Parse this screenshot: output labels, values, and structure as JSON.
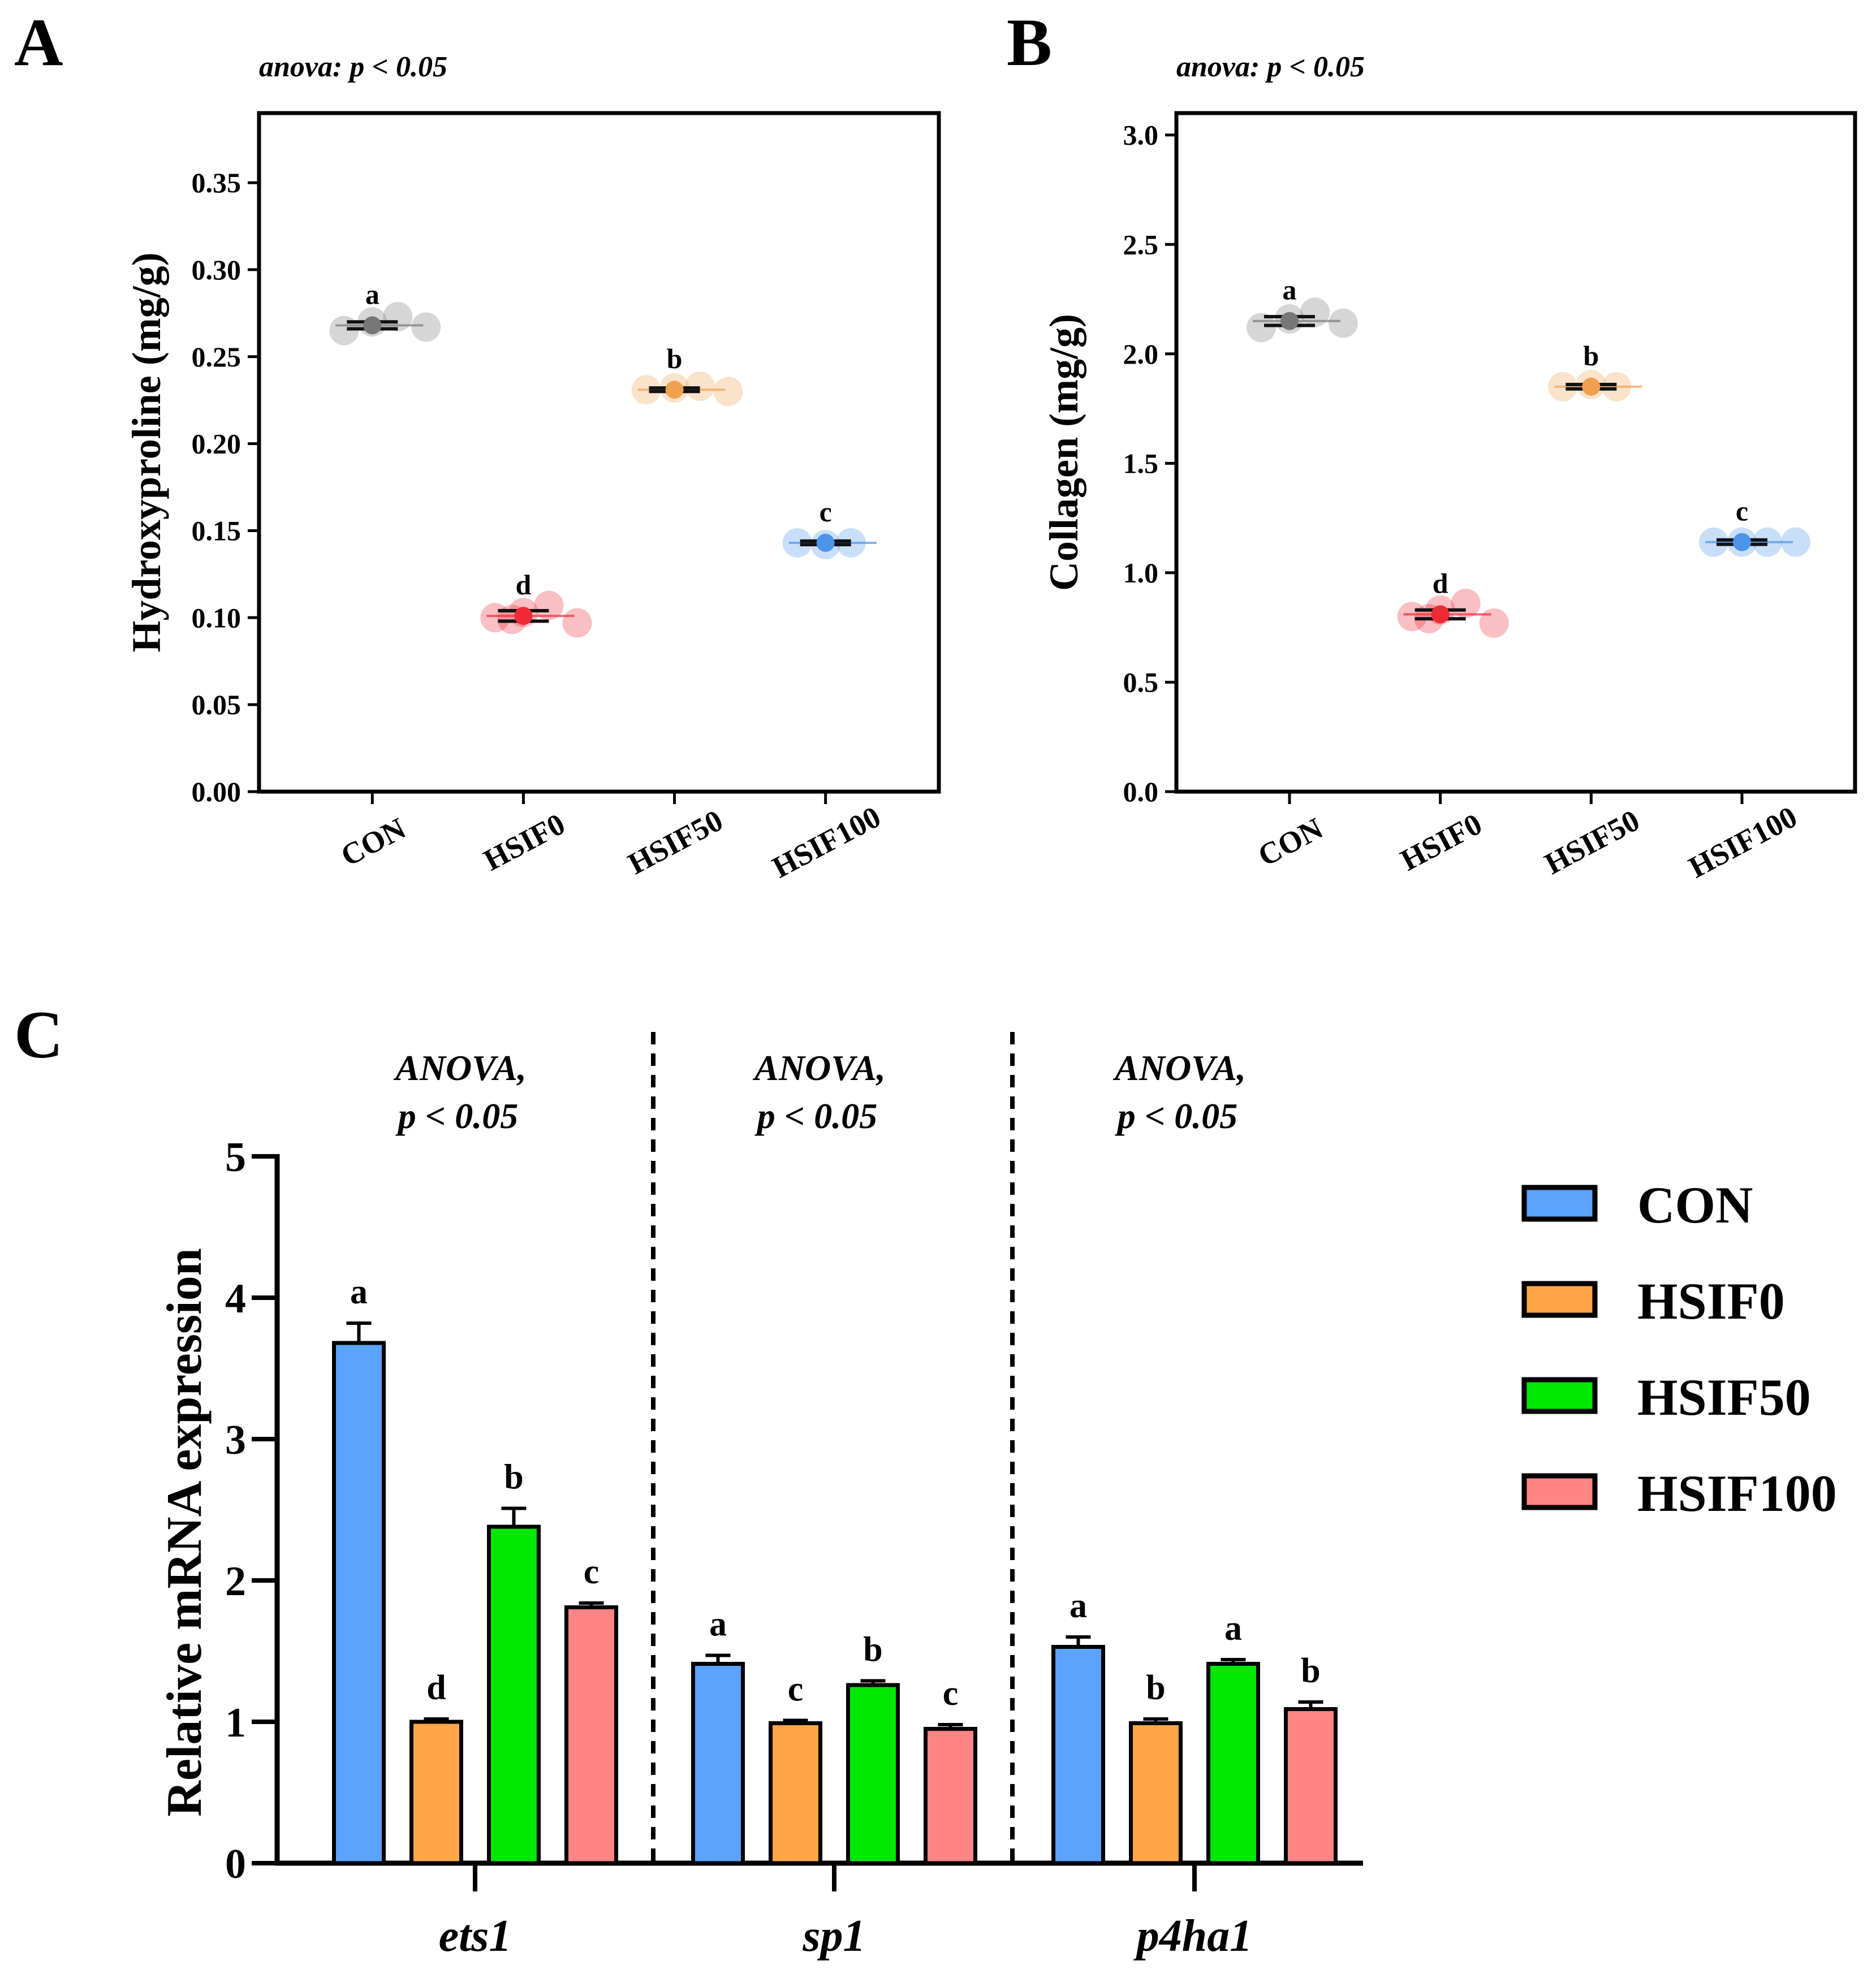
{
  "colors": {
    "CON_dot": "#777777",
    "HSIF0_dot": "#ee2a35",
    "HSIF50_dot": "#f0a14e",
    "HSIF100_dot": "#4c94ea",
    "CON_bar": "#5aa3ff",
    "HSIF0_bar": "#ffa54a",
    "HSIF50_bar": "#00e800",
    "HSIF100_bar": "#ff8484"
  },
  "chart_data": [
    {
      "panel": "A",
      "type": "scatter",
      "annotation": "anova: p < 0.05",
      "ylabel": "Hydroxyproline (mg/g)",
      "ylim": [
        0,
        0.39
      ],
      "yticks": [
        "0.00",
        "0.05",
        "0.10",
        "0.15",
        "0.20",
        "0.25",
        "0.30",
        "0.35"
      ],
      "categories": [
        "CON",
        "HSIF0",
        "HSIF50",
        "HSIF100"
      ],
      "color_keys": [
        "CON_dot",
        "HSIF0_dot",
        "HSIF50_dot",
        "HSIF100_dot"
      ],
      "series": [
        {
          "name": "CON",
          "points": [
            0.265,
            0.27,
            0.273,
            0.267
          ],
          "mean": 0.268,
          "sem": 0.002,
          "letter": "a"
        },
        {
          "name": "HSIF0",
          "points": [
            0.1,
            0.103,
            0.107,
            0.097,
            0.099
          ],
          "mean": 0.101,
          "sem": 0.003,
          "letter": "d"
        },
        {
          "name": "HSIF50",
          "points": [
            0.231,
            0.232,
            0.233,
            0.23
          ],
          "mean": 0.231,
          "sem": 0.001,
          "letter": "b"
        },
        {
          "name": "HSIF100",
          "points": [
            0.143,
            0.142,
            0.143
          ],
          "mean": 0.143,
          "sem": 0.001,
          "letter": "c"
        }
      ]
    },
    {
      "panel": "B",
      "type": "scatter",
      "annotation": "anova: p < 0.05",
      "ylabel": "Collagen (mg/g)",
      "ylim": [
        0,
        3.1
      ],
      "yticks": [
        "0.0",
        "0.5",
        "1.0",
        "1.5",
        "2.0",
        "2.5",
        "3.0"
      ],
      "categories": [
        "CON",
        "HSIF0",
        "HSIF50",
        "HSIF100"
      ],
      "color_keys": [
        "CON_dot",
        "HSIF0_dot",
        "HSIF50_dot",
        "HSIF100_dot"
      ],
      "series": [
        {
          "name": "CON",
          "points": [
            2.12,
            2.16,
            2.19,
            2.14
          ],
          "mean": 2.15,
          "sem": 0.02,
          "letter": "a"
        },
        {
          "name": "HSIF0",
          "points": [
            0.8,
            0.83,
            0.86,
            0.77,
            0.79
          ],
          "mean": 0.81,
          "sem": 0.02,
          "letter": "d"
        },
        {
          "name": "HSIF50",
          "points": [
            1.85,
            1.86,
            1.85
          ],
          "mean": 1.85,
          "sem": 0.01,
          "letter": "b"
        },
        {
          "name": "HSIF100",
          "points": [
            1.14,
            1.14,
            1.14,
            1.14
          ],
          "mean": 1.14,
          "sem": 0.01,
          "letter": "c"
        }
      ]
    },
    {
      "panel": "C",
      "type": "bar",
      "ylabel": "Relative mRNA expression",
      "ylim": [
        0,
        5
      ],
      "yticks": [
        "0",
        "1",
        "2",
        "3",
        "4",
        "5"
      ],
      "anova_line1": "ANOVA,",
      "anova_line2": "p < 0.05",
      "legend": [
        "CON",
        "HSIF0",
        "HSIF50",
        "HSIF100"
      ],
      "color_keys": [
        "CON_bar",
        "HSIF0_bar",
        "HSIF50_bar",
        "HSIF100_bar"
      ],
      "groups": [
        {
          "gene": "ets1",
          "values": [
            3.68,
            1.0,
            2.38,
            1.81
          ],
          "errors": [
            0.14,
            0.02,
            0.13,
            0.03
          ],
          "letters": [
            "a",
            "d",
            "b",
            "c"
          ]
        },
        {
          "gene": "sp1",
          "values": [
            1.41,
            0.99,
            1.26,
            0.95
          ],
          "errors": [
            0.06,
            0.02,
            0.03,
            0.03
          ],
          "letters": [
            "a",
            "c",
            "b",
            "c"
          ]
        },
        {
          "gene": "p4ha1",
          "values": [
            1.53,
            0.99,
            1.41,
            1.09
          ],
          "errors": [
            0.07,
            0.03,
            0.03,
            0.05
          ],
          "letters": [
            "a",
            "b",
            "a",
            "b"
          ]
        }
      ]
    }
  ],
  "panel_labels": {
    "a": "A",
    "b": "B",
    "c": "C"
  }
}
